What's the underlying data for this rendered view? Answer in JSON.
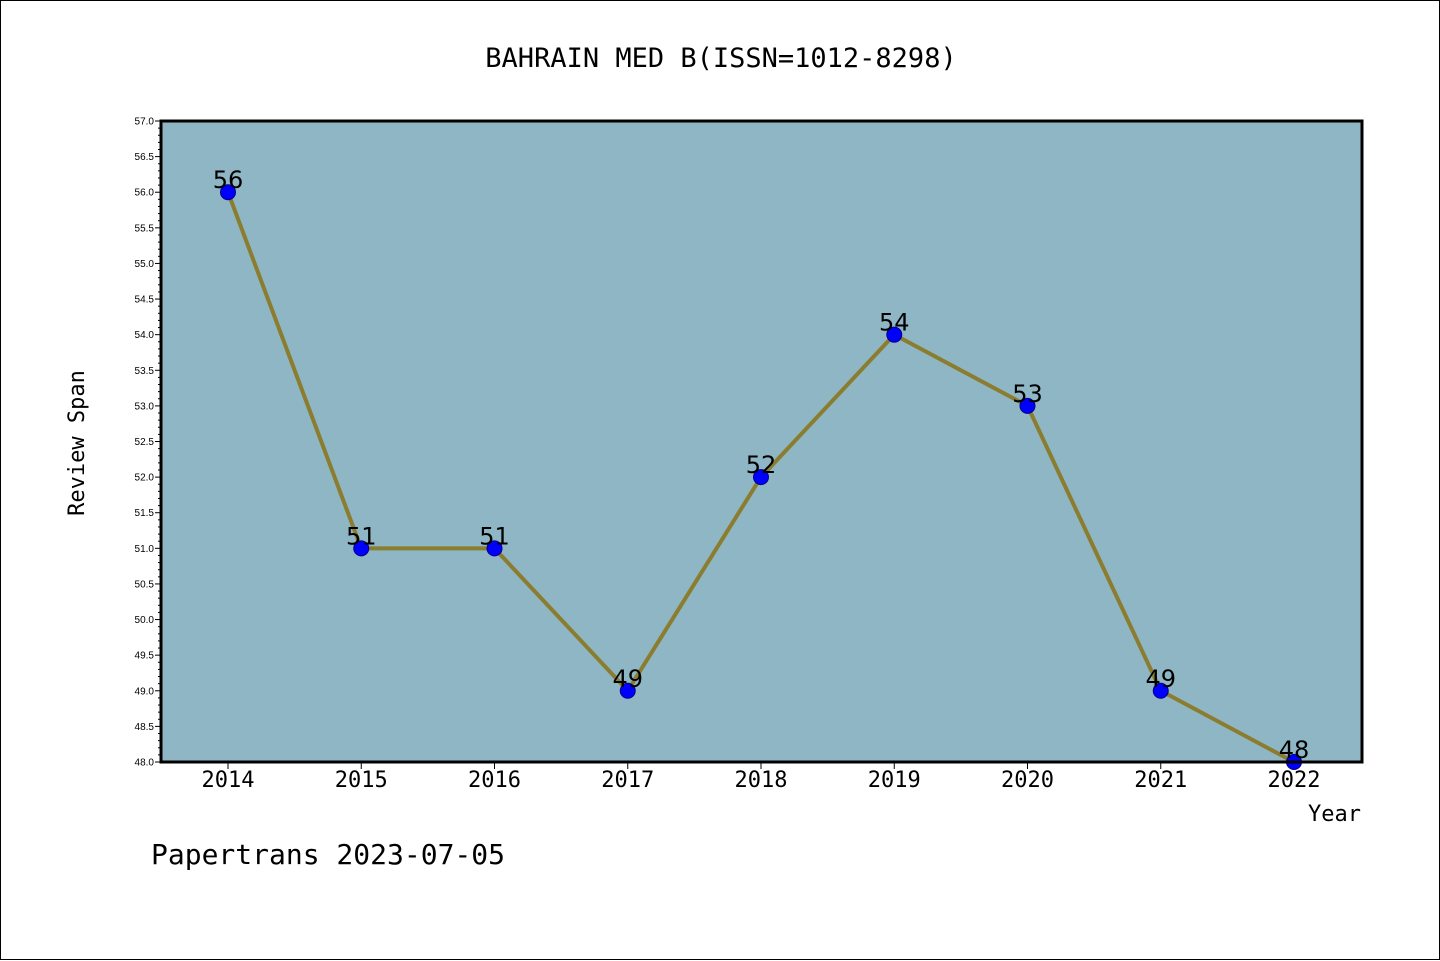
{
  "footer": "Papertrans 2023-07-05",
  "colors": {
    "plot_background": "#8FB6C4",
    "line": "#8B7D2F",
    "marker": "#0000FF",
    "marker_edge": "#00008B"
  },
  "chart_data": {
    "type": "line",
    "title": "BAHRAIN MED B(ISSN=1012-8298)",
    "xlabel": "Year",
    "ylabel": "Review Span",
    "categories": [
      "2014",
      "2015",
      "2016",
      "2017",
      "2018",
      "2019",
      "2020",
      "2021",
      "2022"
    ],
    "series": [
      {
        "values": [
          56,
          51,
          51,
          49,
          52,
          54,
          53,
          49,
          48
        ]
      }
    ],
    "ylim": [
      48.0,
      57.0
    ],
    "yticks": [
      "48.0",
      "48.5",
      "49.0",
      "49.5",
      "50.0",
      "50.5",
      "51.0",
      "51.5",
      "52.0",
      "52.5",
      "53.0",
      "53.5",
      "54.0",
      "54.5",
      "55.0",
      "55.5",
      "56.0",
      "56.5",
      "57.0"
    ],
    "data_labels": [
      "56",
      "51",
      "51",
      "49",
      "52",
      "54",
      "53",
      "49",
      "48"
    ],
    "grid": false,
    "legend": "none"
  }
}
